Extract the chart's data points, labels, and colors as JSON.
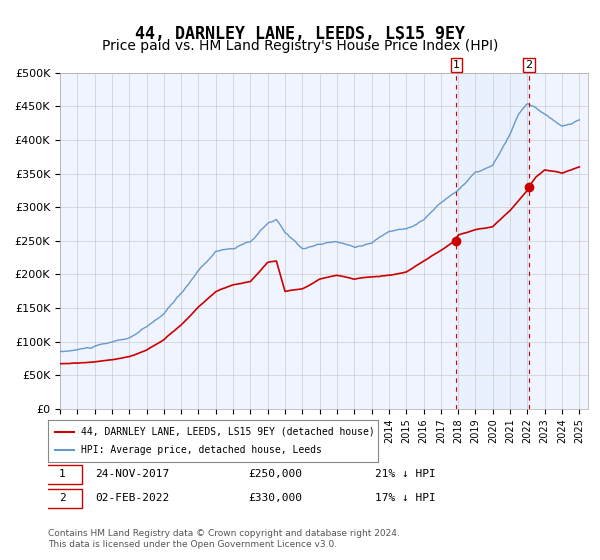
{
  "title": "44, DARNLEY LANE, LEEDS, LS15 9EY",
  "subtitle": "Price paid vs. HM Land Registry's House Price Index (HPI)",
  "title_fontsize": 12,
  "subtitle_fontsize": 10,
  "ylabel": "",
  "ylim": [
    0,
    500000
  ],
  "yticks": [
    0,
    50000,
    100000,
    150000,
    200000,
    250000,
    300000,
    350000,
    400000,
    450000,
    500000
  ],
  "ytick_labels": [
    "£0",
    "£50K",
    "£100K",
    "£150K",
    "£200K",
    "£250K",
    "£300K",
    "£350K",
    "£400K",
    "£450K",
    "£500K"
  ],
  "background_color": "#ffffff",
  "plot_bg_color": "#f0f4ff",
  "grid_color": "#cccccc",
  "hpi_color": "#6699cc",
  "price_color": "#cc0000",
  "marker_color": "#cc0000",
  "dashed_line_color": "#cc0000",
  "shade_color": "#ddeeff",
  "legend_label_price": "44, DARNLEY LANE, LEEDS, LS15 9EY (detached house)",
  "legend_label_hpi": "HPI: Average price, detached house, Leeds",
  "event1_date_x": 2017.9,
  "event1_price": 250000,
  "event1_label": "24-NOV-2017",
  "event1_amount": "£250,000",
  "event1_hpi_pct": "21% ↓ HPI",
  "event2_date_x": 2022.08,
  "event2_price": 330000,
  "event2_label": "02-FEB-2022",
  "event2_amount": "£330,000",
  "event2_hpi_pct": "17% ↓ HPI",
  "footer": "Contains HM Land Registry data © Crown copyright and database right 2024.\nThis data is licensed under the Open Government Licence v3.0.",
  "xmin": 1995,
  "xmax": 2025.5
}
